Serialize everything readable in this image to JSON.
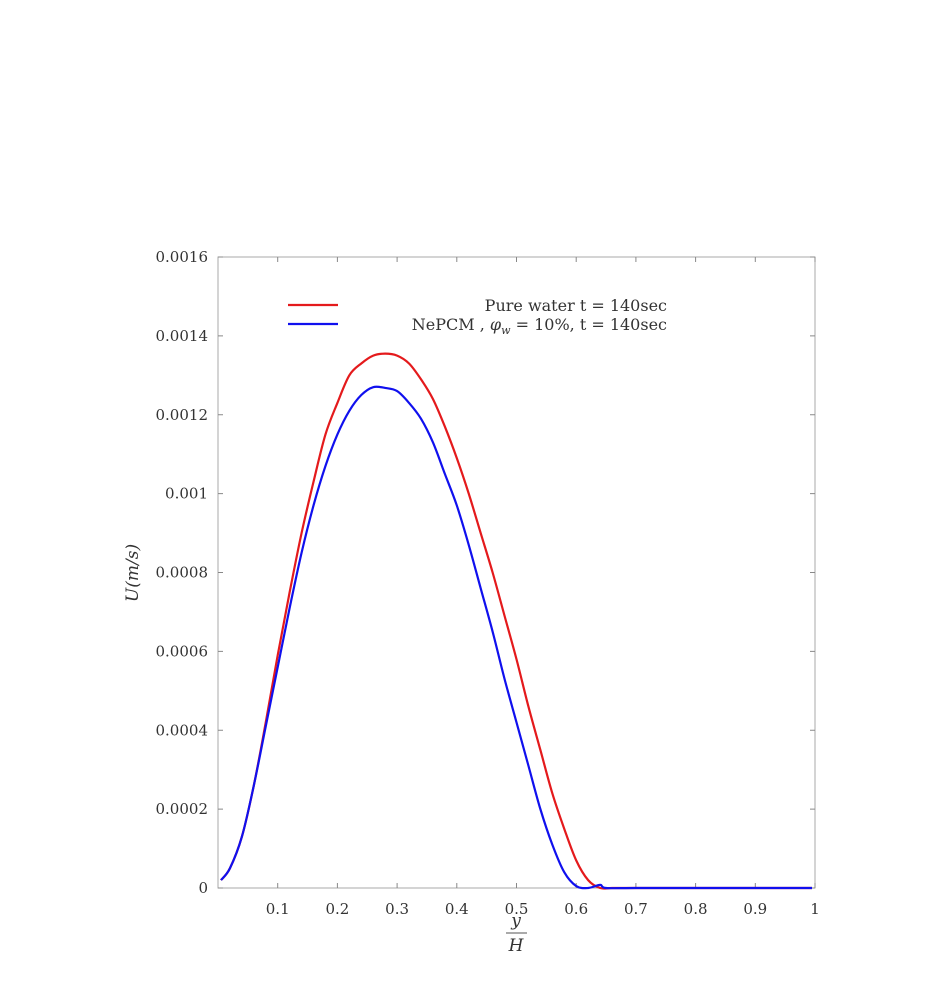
{
  "chart_data": {
    "type": "line",
    "title": "",
    "xlabel_num": "y",
    "xlabel_den": "H",
    "ylabel": "U(m/s)",
    "xlim": [
      0,
      1
    ],
    "ylim": [
      0,
      0.0016
    ],
    "grid": false,
    "legend_position": "top",
    "x_ticks": [
      {
        "value": 0.1,
        "label": "0.1"
      },
      {
        "value": 0.2,
        "label": "0.2"
      },
      {
        "value": 0.3,
        "label": "0.3"
      },
      {
        "value": 0.4,
        "label": "0.4"
      },
      {
        "value": 0.5,
        "label": "0.5"
      },
      {
        "value": 0.6,
        "label": "0.6"
      },
      {
        "value": 0.7,
        "label": "0.7"
      },
      {
        "value": 0.8,
        "label": "0.8"
      },
      {
        "value": 0.9,
        "label": "0.9"
      },
      {
        "value": 1.0,
        "label": "1"
      }
    ],
    "y_ticks": [
      {
        "value": 0,
        "label": "0"
      },
      {
        "value": 0.0002,
        "label": "0.0002"
      },
      {
        "value": 0.0004,
        "label": "0.0004"
      },
      {
        "value": 0.0006,
        "label": "0.0006"
      },
      {
        "value": 0.0008,
        "label": "0.0008"
      },
      {
        "value": 0.001,
        "label": "0.001"
      },
      {
        "value": 0.0012,
        "label": "0.0012"
      },
      {
        "value": 0.0014,
        "label": "0.0014"
      },
      {
        "value": 0.0016,
        "label": "0.0016"
      }
    ],
    "series": [
      {
        "name": "Pure water t = 140sec",
        "color": "#e41a1c",
        "points": [
          [
            0.005,
            2e-05
          ],
          [
            0.02,
            5e-05
          ],
          [
            0.04,
            0.00013
          ],
          [
            0.06,
            0.00026
          ],
          [
            0.08,
            0.00042
          ],
          [
            0.1,
            0.00059
          ],
          [
            0.12,
            0.00075
          ],
          [
            0.14,
            0.0009
          ],
          [
            0.16,
            0.00103
          ],
          [
            0.18,
            0.00115
          ],
          [
            0.2,
            0.00123
          ],
          [
            0.22,
            0.0013
          ],
          [
            0.24,
            0.00133
          ],
          [
            0.26,
            0.00135
          ],
          [
            0.28,
            0.001355
          ],
          [
            0.3,
            0.00135
          ],
          [
            0.32,
            0.00133
          ],
          [
            0.34,
            0.00129
          ],
          [
            0.36,
            0.00124
          ],
          [
            0.38,
            0.00117
          ],
          [
            0.4,
            0.00109
          ],
          [
            0.42,
            0.001
          ],
          [
            0.44,
            0.0009
          ],
          [
            0.46,
            0.0008
          ],
          [
            0.48,
            0.00069
          ],
          [
            0.5,
            0.00058
          ],
          [
            0.52,
            0.00046
          ],
          [
            0.54,
            0.00035
          ],
          [
            0.56,
            0.00024
          ],
          [
            0.58,
            0.00015
          ],
          [
            0.6,
            7e-05
          ],
          [
            0.62,
            2e-05
          ],
          [
            0.64,
            0.0
          ],
          [
            0.66,
            0.0
          ],
          [
            0.7,
            0.0
          ],
          [
            0.8,
            0.0
          ],
          [
            0.9,
            0.0
          ],
          [
            0.995,
            0.0
          ]
        ]
      },
      {
        "name": "NePCM , φ_w = 10%, t = 140sec",
        "name_prefix": "NePCM , ",
        "name_phi": "φ",
        "name_sub": "w",
        "name_suffix": " = 10%, t = 140sec",
        "color": "#1010ee",
        "points": [
          [
            0.005,
            2e-05
          ],
          [
            0.02,
            5e-05
          ],
          [
            0.04,
            0.00013
          ],
          [
            0.06,
            0.00026
          ],
          [
            0.08,
            0.00041
          ],
          [
            0.1,
            0.00056
          ],
          [
            0.12,
            0.00071
          ],
          [
            0.14,
            0.00085
          ],
          [
            0.16,
            0.00097
          ],
          [
            0.18,
            0.00107
          ],
          [
            0.2,
            0.00115
          ],
          [
            0.22,
            0.00121
          ],
          [
            0.24,
            0.00125
          ],
          [
            0.26,
            0.00127
          ],
          [
            0.28,
            0.001268
          ],
          [
            0.3,
            0.00126
          ],
          [
            0.32,
            0.00123
          ],
          [
            0.34,
            0.00119
          ],
          [
            0.36,
            0.00113
          ],
          [
            0.38,
            0.00105
          ],
          [
            0.4,
            0.00097
          ],
          [
            0.42,
            0.00087
          ],
          [
            0.44,
            0.00076
          ],
          [
            0.46,
            0.00065
          ],
          [
            0.48,
            0.00053
          ],
          [
            0.5,
            0.00042
          ],
          [
            0.52,
            0.00031
          ],
          [
            0.54,
            0.0002
          ],
          [
            0.56,
            0.00011
          ],
          [
            0.58,
            4e-05
          ],
          [
            0.6,
            5e-06
          ],
          [
            0.62,
            0.0
          ],
          [
            0.64,
            8e-06
          ],
          [
            0.65,
            0.0
          ],
          [
            0.7,
            0.0
          ],
          [
            0.8,
            0.0
          ],
          [
            0.9,
            0.0
          ],
          [
            0.995,
            0.0
          ]
        ]
      }
    ]
  }
}
